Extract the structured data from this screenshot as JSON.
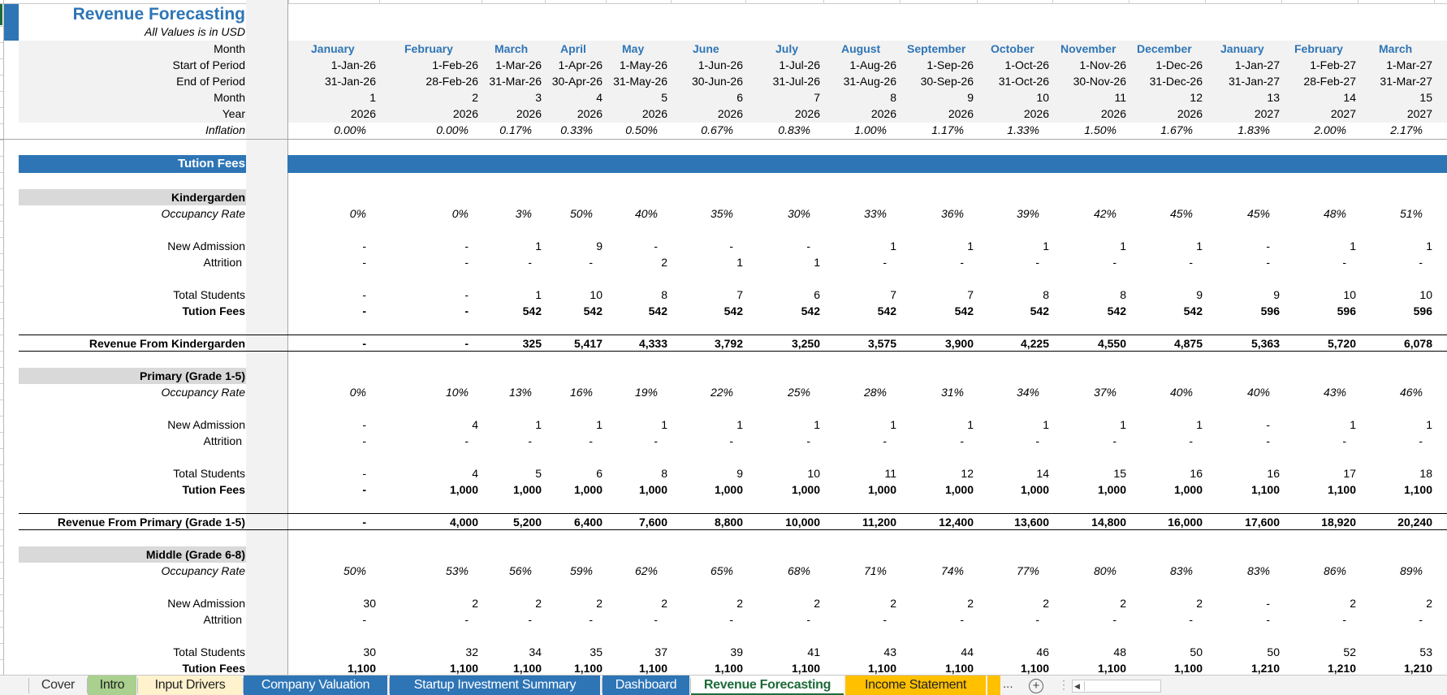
{
  "sheet": {
    "title": "Revenue Forecasting",
    "subtitle": "All Values is in USD"
  },
  "header_rows": {
    "labels": {
      "month_name": "Month",
      "start": "Start of Period",
      "end": "End of Period",
      "month_num": "Month",
      "year": "Year",
      "inflation": "Inflation"
    },
    "months": [
      "January",
      "February",
      "March",
      "April",
      "May",
      "June",
      "July",
      "August",
      "September",
      "October",
      "November",
      "December",
      "January",
      "February",
      "March"
    ],
    "start": [
      "1-Jan-26",
      "1-Feb-26",
      "1-Mar-26",
      "1-Apr-26",
      "1-May-26",
      "1-Jun-26",
      "1-Jul-26",
      "1-Aug-26",
      "1-Sep-26",
      "1-Oct-26",
      "1-Nov-26",
      "1-Dec-26",
      "1-Jan-27",
      "1-Feb-27",
      "1-Mar-27"
    ],
    "end": [
      "31-Jan-26",
      "28-Feb-26",
      "31-Mar-26",
      "30-Apr-26",
      "31-May-26",
      "30-Jun-26",
      "31-Jul-26",
      "31-Aug-26",
      "30-Sep-26",
      "31-Oct-26",
      "30-Nov-26",
      "31-Dec-26",
      "31-Jan-27",
      "28-Feb-27",
      "31-Mar-27"
    ],
    "month_num": [
      "1",
      "2",
      "3",
      "4",
      "5",
      "6",
      "7",
      "8",
      "9",
      "10",
      "11",
      "12",
      "13",
      "14",
      "15"
    ],
    "year": [
      "2026",
      "2026",
      "2026",
      "2026",
      "2026",
      "2026",
      "2026",
      "2026",
      "2026",
      "2026",
      "2026",
      "2026",
      "2027",
      "2027",
      "2027"
    ],
    "inflation": [
      "0.00%",
      "0.00%",
      "0.17%",
      "0.33%",
      "0.50%",
      "0.67%",
      "0.83%",
      "1.00%",
      "1.17%",
      "1.33%",
      "1.50%",
      "1.67%",
      "1.83%",
      "2.00%",
      "2.17%"
    ]
  },
  "section": {
    "title": "Tution Fees"
  },
  "row_labels": {
    "occupancy": "Occupancy Rate",
    "new_admission": "New Admission",
    "attrition": "Attrition",
    "total_students": "Total Students",
    "tuition_fees": "Tution Fees"
  },
  "groups": [
    {
      "name": "Kindergarden",
      "revenue_label": "Revenue From Kindergarden",
      "occupancy": [
        "0%",
        "0%",
        "3%",
        "50%",
        "40%",
        "35%",
        "30%",
        "33%",
        "36%",
        "39%",
        "42%",
        "45%",
        "45%",
        "48%",
        "51%"
      ],
      "new_admission": [
        "-",
        "-",
        "1",
        "9",
        "-",
        "-",
        "-",
        "1",
        "1",
        "1",
        "1",
        "1",
        "-",
        "1",
        "1"
      ],
      "attrition": [
        "-",
        "-",
        "-",
        "-",
        "2",
        "1",
        "1",
        "-",
        "-",
        "-",
        "-",
        "-",
        "-",
        "-",
        "-"
      ],
      "total_students": [
        "-",
        "-",
        "1",
        "10",
        "8",
        "7",
        "6",
        "7",
        "7",
        "8",
        "8",
        "9",
        "9",
        "10",
        "10"
      ],
      "tuition_fees": [
        "-",
        "-",
        "542",
        "542",
        "542",
        "542",
        "542",
        "542",
        "542",
        "542",
        "542",
        "542",
        "596",
        "596",
        "596"
      ],
      "revenue": [
        "-",
        "-",
        "325",
        "5,417",
        "4,333",
        "3,792",
        "3,250",
        "3,575",
        "3,900",
        "4,225",
        "4,550",
        "4,875",
        "5,363",
        "5,720",
        "6,078"
      ]
    },
    {
      "name": "Primary (Grade 1-5)",
      "revenue_label": "Revenue From Primary (Grade 1-5)",
      "occupancy": [
        "0%",
        "10%",
        "13%",
        "16%",
        "19%",
        "22%",
        "25%",
        "28%",
        "31%",
        "34%",
        "37%",
        "40%",
        "40%",
        "43%",
        "46%"
      ],
      "new_admission": [
        "-",
        "4",
        "1",
        "1",
        "1",
        "1",
        "1",
        "1",
        "1",
        "1",
        "1",
        "1",
        "-",
        "1",
        "1"
      ],
      "attrition": [
        "-",
        "-",
        "-",
        "-",
        "-",
        "-",
        "-",
        "-",
        "-",
        "-",
        "-",
        "-",
        "-",
        "-",
        "-"
      ],
      "total_students": [
        "-",
        "4",
        "5",
        "6",
        "8",
        "9",
        "10",
        "11",
        "12",
        "14",
        "15",
        "16",
        "16",
        "17",
        "18"
      ],
      "tuition_fees": [
        "-",
        "1,000",
        "1,000",
        "1,000",
        "1,000",
        "1,000",
        "1,000",
        "1,000",
        "1,000",
        "1,000",
        "1,000",
        "1,000",
        "1,100",
        "1,100",
        "1,100"
      ],
      "revenue": [
        "-",
        "4,000",
        "5,200",
        "6,400",
        "7,600",
        "8,800",
        "10,000",
        "11,200",
        "12,400",
        "13,600",
        "14,800",
        "16,000",
        "17,600",
        "18,920",
        "20,240"
      ]
    },
    {
      "name": "Middle (Grade 6-8)",
      "occupancy": [
        "50%",
        "53%",
        "56%",
        "59%",
        "62%",
        "65%",
        "68%",
        "71%",
        "74%",
        "77%",
        "80%",
        "83%",
        "83%",
        "86%",
        "89%"
      ],
      "new_admission": [
        "30",
        "2",
        "2",
        "2",
        "2",
        "2",
        "2",
        "2",
        "2",
        "2",
        "2",
        "2",
        "-",
        "2",
        "2"
      ],
      "attrition": [
        "-",
        "-",
        "-",
        "-",
        "-",
        "-",
        "-",
        "-",
        "-",
        "-",
        "-",
        "-",
        "-",
        "-",
        "-"
      ],
      "total_students": [
        "30",
        "32",
        "34",
        "35",
        "37",
        "39",
        "41",
        "43",
        "44",
        "46",
        "48",
        "50",
        "50",
        "52",
        "53"
      ],
      "tuition_fees": [
        "1,100",
        "1,100",
        "1,100",
        "1,100",
        "1,100",
        "1,100",
        "1,100",
        "1,100",
        "1,100",
        "1,100",
        "1,100",
        "1,100",
        "1,210",
        "1,210",
        "1,210"
      ]
    }
  ],
  "tabs": [
    {
      "label": "Cover",
      "color": "#f3f3f3",
      "text": "#333333"
    },
    {
      "label": "Intro",
      "color": "#a9d08e",
      "text": "#222222"
    },
    {
      "label": "Input Drivers",
      "color": "#fff2cc",
      "text": "#222222"
    },
    {
      "label": "Company Valuation",
      "color": "#2e75b6",
      "text": "#ffffff"
    },
    {
      "label": "Startup Investment Summary",
      "color": "#2e75b6",
      "text": "#ffffff"
    },
    {
      "label": "Dashboard",
      "color": "#2e75b6",
      "text": "#ffffff"
    },
    {
      "label": "Revenue Forecasting",
      "color": "#ffffff",
      "text": "#1e6b3a",
      "active": true
    },
    {
      "label": "Income Statement",
      "color": "#ffc000",
      "text": "#222222"
    }
  ],
  "tabbar": {
    "more": "...",
    "add": "+",
    "vdots": "⋮",
    "scroll_left": "◀"
  },
  "colors": {
    "accent": "#2e75b6",
    "header_grey": "#f2f2f2",
    "group_grey": "#d9d9d9",
    "active_tab": "#1e6b3a"
  }
}
